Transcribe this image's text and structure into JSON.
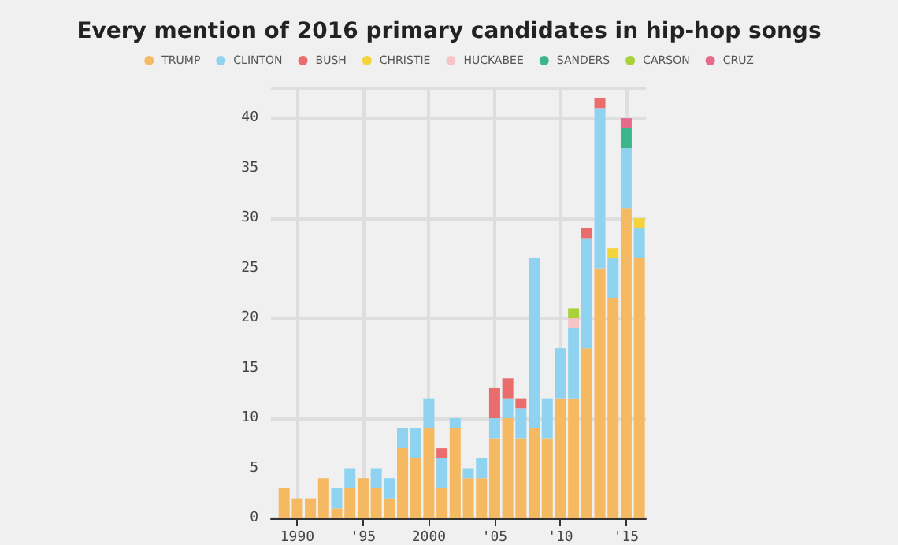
{
  "chart_data": {
    "type": "bar",
    "stacked": true,
    "title": "Every mention of 2016 primary candidates in hip-hop songs",
    "x": [
      1989,
      1990,
      1991,
      1992,
      1993,
      1994,
      1995,
      1996,
      1997,
      1998,
      1999,
      2000,
      2001,
      2002,
      2003,
      2004,
      2005,
      2006,
      2007,
      2008,
      2009,
      2010,
      2011,
      2012,
      2013,
      2014,
      2015,
      2016
    ],
    "series": [
      {
        "name": "TRUMP",
        "color": "#f5b961",
        "values": [
          3,
          2,
          2,
          4,
          1,
          3,
          4,
          3,
          2,
          7,
          6,
          9,
          3,
          9,
          4,
          4,
          8,
          10,
          8,
          9,
          8,
          12,
          12,
          17,
          25,
          22,
          31,
          26
        ]
      },
      {
        "name": "CLINTON",
        "color": "#8fd3f0",
        "values": [
          null,
          null,
          null,
          null,
          2,
          2,
          null,
          2,
          2,
          2,
          3,
          3,
          3,
          1,
          1,
          2,
          2,
          2,
          3,
          17,
          4,
          5,
          7,
          11,
          16,
          4,
          6,
          3
        ]
      },
      {
        "name": "BUSH",
        "color": "#ea6d6d",
        "values": [
          null,
          null,
          null,
          null,
          null,
          null,
          null,
          null,
          null,
          null,
          null,
          null,
          1,
          null,
          null,
          null,
          3,
          2,
          1,
          null,
          null,
          null,
          null,
          1,
          1,
          null,
          null,
          null
        ]
      },
      {
        "name": "CHRISTIE",
        "color": "#f4d43a",
        "values": [
          null,
          null,
          null,
          null,
          null,
          null,
          null,
          null,
          null,
          null,
          null,
          null,
          null,
          null,
          null,
          null,
          null,
          null,
          null,
          null,
          null,
          null,
          null,
          null,
          null,
          1,
          null,
          1
        ]
      },
      {
        "name": "HUCKABEE",
        "color": "#f6c3c6",
        "values": [
          null,
          null,
          null,
          null,
          null,
          null,
          null,
          null,
          null,
          null,
          null,
          null,
          null,
          null,
          null,
          null,
          null,
          null,
          null,
          null,
          null,
          null,
          1,
          null,
          null,
          null,
          null,
          null
        ]
      },
      {
        "name": "SANDERS",
        "color": "#3db58c",
        "values": [
          null,
          null,
          null,
          null,
          null,
          null,
          null,
          null,
          null,
          null,
          null,
          null,
          null,
          null,
          null,
          null,
          null,
          null,
          null,
          null,
          null,
          null,
          null,
          null,
          null,
          null,
          2,
          null
        ]
      },
      {
        "name": "CARSON",
        "color": "#a8d13c",
        "values": [
          null,
          null,
          null,
          null,
          null,
          null,
          null,
          null,
          null,
          null,
          null,
          null,
          null,
          null,
          null,
          null,
          null,
          null,
          null,
          null,
          null,
          null,
          1,
          null,
          null,
          null,
          null,
          null
        ]
      },
      {
        "name": "CRUZ",
        "color": "#e66b8a",
        "values": [
          null,
          null,
          null,
          null,
          null,
          null,
          null,
          null,
          null,
          null,
          null,
          null,
          null,
          null,
          null,
          null,
          null,
          null,
          null,
          null,
          null,
          null,
          null,
          null,
          null,
          null,
          1,
          null
        ]
      }
    ],
    "xlim": [
      1988,
      2016.5
    ],
    "xticks": [
      {
        "value": 1990,
        "label": "1990"
      },
      {
        "value": 1995,
        "label": "'95"
      },
      {
        "value": 2000,
        "label": "2000"
      },
      {
        "value": 2005,
        "label": "'05"
      },
      {
        "value": 2010,
        "label": "'10"
      },
      {
        "value": 2015,
        "label": "'15"
      }
    ],
    "ylim": [
      0,
      43
    ],
    "yticks": [
      0,
      5,
      10,
      15,
      20,
      25,
      30,
      35,
      40
    ],
    "grid": true,
    "legend": "top"
  }
}
